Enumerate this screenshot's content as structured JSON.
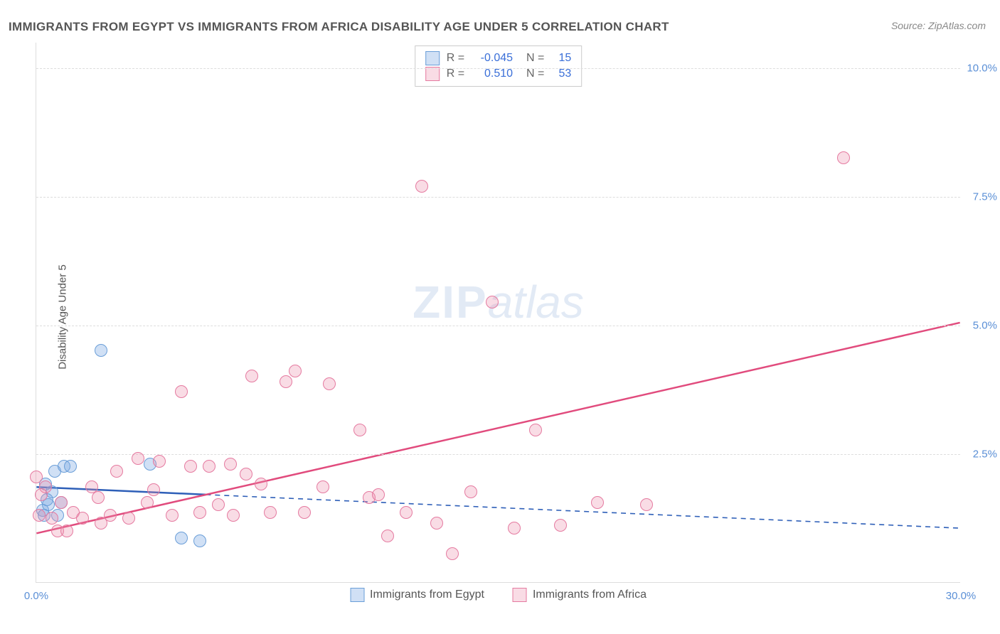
{
  "title": "IMMIGRANTS FROM EGYPT VS IMMIGRANTS FROM AFRICA DISABILITY AGE UNDER 5 CORRELATION CHART",
  "source": "Source: ZipAtlas.com",
  "y_axis_title": "Disability Age Under 5",
  "watermark_zip": "ZIP",
  "watermark_atlas": "atlas",
  "chart": {
    "type": "scatter",
    "xlim": [
      0,
      30
    ],
    "ylim": [
      0,
      10.5
    ],
    "x_ticks": [
      {
        "v": 0,
        "l": "0.0%"
      },
      {
        "v": 30,
        "l": "30.0%"
      }
    ],
    "y_ticks": [
      {
        "v": 2.5,
        "l": "2.5%"
      },
      {
        "v": 5.0,
        "l": "5.0%"
      },
      {
        "v": 7.5,
        "l": "7.5%"
      },
      {
        "v": 10.0,
        "l": "10.0%"
      }
    ],
    "background_color": "#ffffff",
    "grid_color": "#dddddd",
    "point_radius": 9,
    "point_stroke_width": 1.3,
    "series": [
      {
        "name": "Immigrants from Egypt",
        "fill": "rgba(120,165,225,0.35)",
        "stroke": "#6a9ed8",
        "reg_color": "#2e5fb8",
        "reg_solid_until_x": 5.5,
        "R": "-0.045",
        "N": "15",
        "reg_y_at_x0": 1.85,
        "reg_y_at_xmax": 1.05,
        "points": [
          [
            0.2,
            1.4
          ],
          [
            0.3,
            1.9
          ],
          [
            0.4,
            1.5
          ],
          [
            0.6,
            2.15
          ],
          [
            0.7,
            1.3
          ],
          [
            0.9,
            2.25
          ],
          [
            1.1,
            2.25
          ],
          [
            2.1,
            4.5
          ],
          [
            3.7,
            2.3
          ],
          [
            4.7,
            0.85
          ],
          [
            0.5,
            1.75
          ],
          [
            0.35,
            1.6
          ],
          [
            0.25,
            1.3
          ],
          [
            5.3,
            0.8
          ],
          [
            0.8,
            1.55
          ]
        ]
      },
      {
        "name": "Immigrants from Africa",
        "fill": "rgba(235,140,170,0.30)",
        "stroke": "#e57aa0",
        "reg_color": "#e14b7d",
        "reg_solid_until_x": 30,
        "R": "0.510",
        "N": "53",
        "reg_y_at_x0": 0.95,
        "reg_y_at_xmax": 5.05,
        "points": [
          [
            0.0,
            2.05
          ],
          [
            0.1,
            1.3
          ],
          [
            0.3,
            1.85
          ],
          [
            0.5,
            1.25
          ],
          [
            0.7,
            1.0
          ],
          [
            1.2,
            1.35
          ],
          [
            1.5,
            1.25
          ],
          [
            1.8,
            1.85
          ],
          [
            2.1,
            1.15
          ],
          [
            2.4,
            1.3
          ],
          [
            2.6,
            2.15
          ],
          [
            3.0,
            1.25
          ],
          [
            3.3,
            2.4
          ],
          [
            3.6,
            1.55
          ],
          [
            4.0,
            2.35
          ],
          [
            4.4,
            1.3
          ],
          [
            4.7,
            3.7
          ],
          [
            5.0,
            2.25
          ],
          [
            5.3,
            1.35
          ],
          [
            5.6,
            2.25
          ],
          [
            5.9,
            1.5
          ],
          [
            6.3,
            2.3
          ],
          [
            6.4,
            1.3
          ],
          [
            7.0,
            4.0
          ],
          [
            7.3,
            1.9
          ],
          [
            7.6,
            1.35
          ],
          [
            8.1,
            3.9
          ],
          [
            8.4,
            4.1
          ],
          [
            8.7,
            1.35
          ],
          [
            9.3,
            1.85
          ],
          [
            9.5,
            3.85
          ],
          [
            10.5,
            2.95
          ],
          [
            10.8,
            1.65
          ],
          [
            11.1,
            1.7
          ],
          [
            11.4,
            0.9
          ],
          [
            12.0,
            1.35
          ],
          [
            12.5,
            7.7
          ],
          [
            13.0,
            1.15
          ],
          [
            13.5,
            0.55
          ],
          [
            14.1,
            1.75
          ],
          [
            14.8,
            5.45
          ],
          [
            15.5,
            1.05
          ],
          [
            16.2,
            2.95
          ],
          [
            17.0,
            1.1
          ],
          [
            18.2,
            1.55
          ],
          [
            19.8,
            1.5
          ],
          [
            26.2,
            8.25
          ],
          [
            1.0,
            1.0
          ],
          [
            2.0,
            1.65
          ],
          [
            3.8,
            1.8
          ],
          [
            6.8,
            2.1
          ],
          [
            0.8,
            1.55
          ],
          [
            0.15,
            1.7
          ]
        ]
      }
    ]
  },
  "legend_bottom": [
    {
      "swatch_fill": "rgba(120,165,225,0.35)",
      "swatch_stroke": "#6a9ed8",
      "label": "Immigrants from Egypt"
    },
    {
      "swatch_fill": "rgba(235,140,170,0.30)",
      "swatch_stroke": "#e57aa0",
      "label": "Immigrants from Africa"
    }
  ]
}
